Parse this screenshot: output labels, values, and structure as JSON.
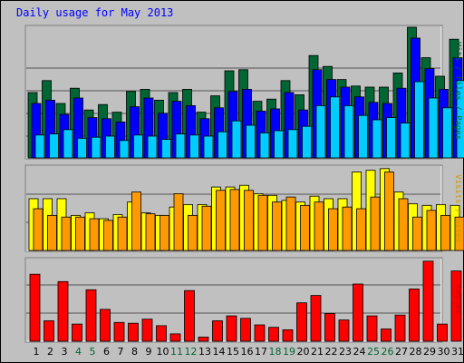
{
  "title": "Daily usage for May 2013",
  "colors": {
    "background": "#c0c0c0",
    "plot_border": "#808080",
    "gridline": "#555555",
    "title": "#0000ff",
    "hits": "#006633",
    "files": "#0000ff",
    "pages": "#00ccff",
    "visits": "#ffff00",
    "sites": "#ff9900",
    "kbytes": "#ff0000",
    "day_weekday": "#000000",
    "day_weekend": "#006633"
  },
  "chart_data": [
    {
      "type": "bar",
      "name": "hits-files-pages",
      "categories": [
        "1",
        "2",
        "3",
        "4",
        "5",
        "6",
        "7",
        "8",
        "9",
        "10",
        "11",
        "12",
        "13",
        "14",
        "15",
        "16",
        "17",
        "18",
        "19",
        "20",
        "21",
        "22",
        "23",
        "24",
        "25",
        "26",
        "27",
        "28",
        "29",
        "30",
        "31"
      ],
      "series": [
        {
          "values": [
            60,
            71,
            50,
            64,
            44,
            49,
            42,
            61,
            63,
            53,
            60,
            63,
            42,
            57,
            80,
            81,
            52,
            54,
            71,
            58,
            94,
            84,
            72,
            66,
            65,
            65,
            78,
            120,
            92,
            75,
            109
          ]
        },
        {
          "values": [
            50,
            53,
            40,
            55,
            37,
            36,
            33,
            47,
            55,
            41,
            52,
            48,
            36,
            46,
            61,
            63,
            43,
            45,
            60,
            44,
            81,
            72,
            65,
            56,
            51,
            50,
            64,
            110,
            82,
            63,
            92
          ]
        },
        {
          "values": [
            21,
            22,
            26,
            18,
            19,
            20,
            16,
            21,
            20,
            17,
            22,
            21,
            20,
            24,
            34,
            30,
            23,
            25,
            26,
            29,
            48,
            56,
            48,
            39,
            35,
            37,
            32,
            70,
            55,
            46,
            71
          ]
        }
      ],
      "ylim": [
        0,
        120
      ]
    },
    {
      "type": "bar",
      "name": "visits-sites",
      "categories": [
        "1",
        "2",
        "3",
        "4",
        "5",
        "6",
        "7",
        "8",
        "9",
        "10",
        "11",
        "12",
        "13",
        "14",
        "15",
        "16",
        "17",
        "18",
        "19",
        "20",
        "21",
        "22",
        "23",
        "24",
        "25",
        "26",
        "27",
        "28",
        "29",
        "30",
        "31"
      ],
      "series": [
        {
          "values": [
            62,
            62,
            62,
            42,
            45,
            38,
            43,
            58,
            45,
            42,
            52,
            55,
            55,
            76,
            76,
            78,
            68,
            66,
            60,
            58,
            65,
            62,
            62,
            94,
            96,
            98,
            70,
            56,
            54,
            55,
            54
          ]
        },
        {
          "values": [
            50,
            42,
            40,
            40,
            38,
            36,
            40,
            70,
            44,
            42,
            68,
            42,
            53,
            72,
            73,
            72,
            66,
            58,
            64,
            54,
            58,
            50,
            52,
            50,
            64,
            94,
            62,
            40,
            48,
            42,
            40
          ]
        }
      ],
      "ylim": [
        0,
        100
      ]
    },
    {
      "type": "bar",
      "name": "kbytes",
      "categories": [
        "1",
        "2",
        "3",
        "4",
        "5",
        "6",
        "7",
        "8",
        "9",
        "10",
        "11",
        "12",
        "13",
        "14",
        "15",
        "16",
        "17",
        "18",
        "19",
        "20",
        "21",
        "22",
        "23",
        "24",
        "25",
        "26",
        "27",
        "28",
        "29",
        "30",
        "31"
      ],
      "series": [
        {
          "values": [
            8.2,
            2.5,
            7.3,
            2.1,
            6.3,
            3.9,
            2.3,
            2.2,
            2.7,
            1.9,
            0.9,
            6.2,
            0.5,
            2.5,
            3.1,
            2.8,
            2.0,
            1.7,
            1.4,
            4.7,
            5.6,
            3.4,
            2.6,
            7.0,
            3.1,
            1.5,
            3.2,
            6.4,
            9.8,
            2.1,
            8.6
          ]
        }
      ],
      "ylim": [
        0,
        10
      ]
    }
  ],
  "axis_text": {
    "top_right": "Hits / Files / Pages",
    "mid_right": "Visits / Sites",
    "bot_right": "KBytes"
  }
}
